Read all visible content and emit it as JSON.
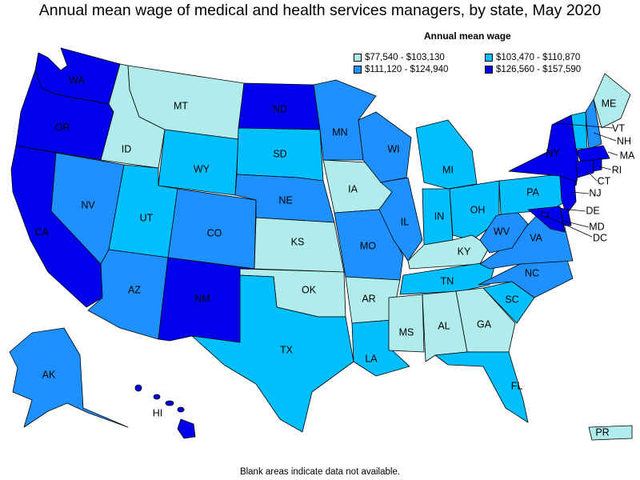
{
  "title": "Annual mean wage of medical and health services managers, by state, May 2020",
  "legend": {
    "title": "Annual mean wage",
    "bins": [
      {
        "range": "$77,540 - $103,130",
        "color": "#b0ecec"
      },
      {
        "range": "$103,470 - $110,870",
        "color": "#00bfff"
      },
      {
        "range": "$111,120 - $124,940",
        "color": "#1e90ff"
      },
      {
        "range": "$126,560 - $157,590",
        "color": "#0000ee"
      }
    ]
  },
  "footer": "Blank areas indicate data not available.",
  "state_bins": {
    "WA": 3,
    "OR": 3,
    "CA": 3,
    "NV": 2,
    "ID": 0,
    "MT": 0,
    "WY": 1,
    "UT": 1,
    "AZ": 2,
    "CO": 2,
    "NM": 3,
    "ND": 3,
    "SD": 1,
    "NE": 2,
    "KS": 0,
    "OK": 0,
    "TX": 1,
    "MN": 2,
    "IA": 0,
    "MO": 2,
    "AR": 0,
    "LA": 1,
    "WI": 2,
    "IL": 2,
    "MI": 1,
    "IN": 1,
    "OH": 1,
    "KY": 0,
    "TN": 1,
    "MS": 0,
    "AL": 0,
    "GA": 0,
    "FL": 1,
    "SC": 1,
    "NC": 2,
    "VA": 2,
    "WV": 2,
    "PA": 1,
    "NY": 3,
    "VT": 1,
    "NH": 2,
    "ME": 0,
    "MA": 3,
    "RI": 3,
    "CT": 3,
    "NJ": 3,
    "DE": 3,
    "MD": 3,
    "DC": 3,
    "AK": 2,
    "HI": 3,
    "PR": 0
  }
}
